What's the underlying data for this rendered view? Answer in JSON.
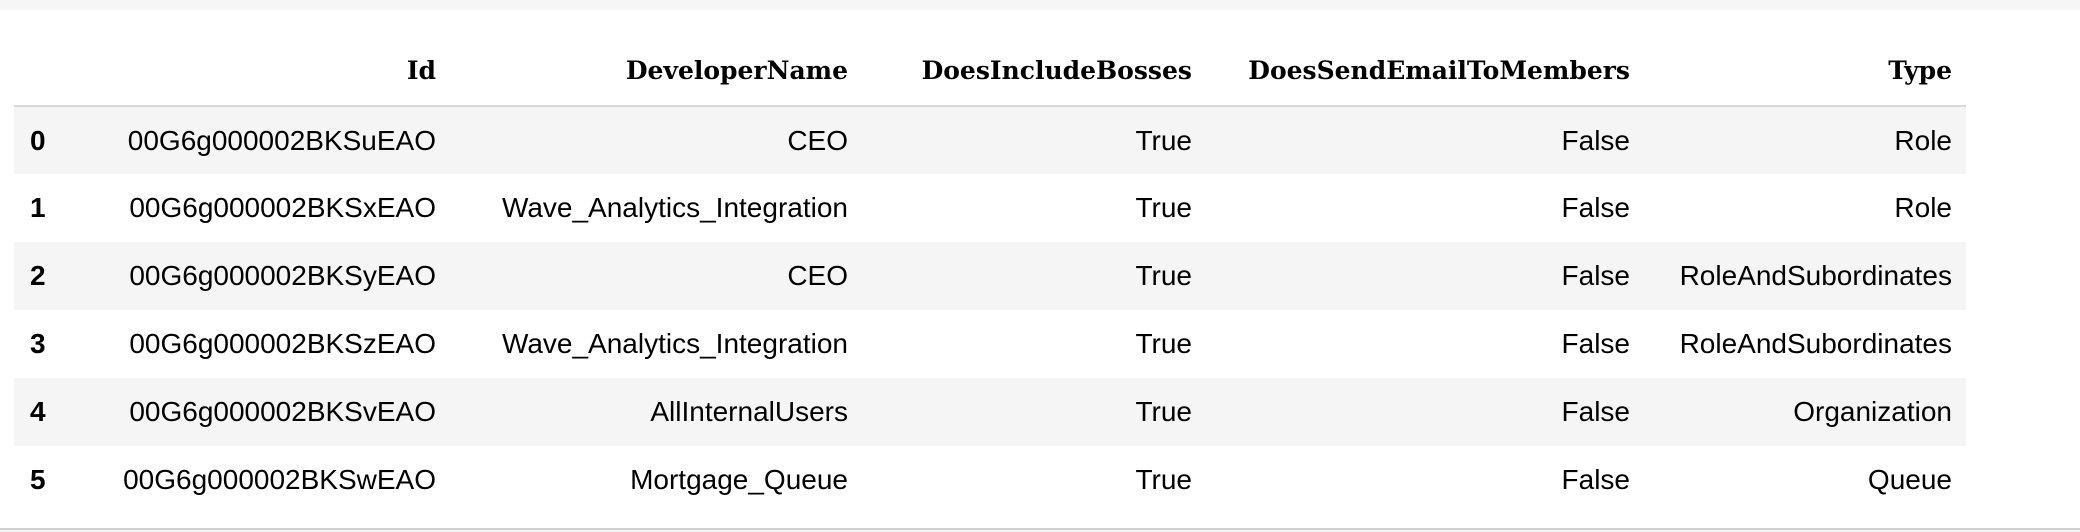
{
  "table": {
    "columns": [
      "",
      "Id",
      "DeveloperName",
      "DoesIncludeBosses",
      "DoesSendEmailToMembers",
      "Type"
    ],
    "rows": [
      {
        "index": "0",
        "cells": [
          "00G6g000002BKSuEAO",
          "CEO",
          "True",
          "False",
          "Role"
        ]
      },
      {
        "index": "1",
        "cells": [
          "00G6g000002BKSxEAO",
          "Wave_Analytics_Integration",
          "True",
          "False",
          "Role"
        ]
      },
      {
        "index": "2",
        "cells": [
          "00G6g000002BKSyEAO",
          "CEO",
          "True",
          "False",
          "RoleAndSubordinates"
        ]
      },
      {
        "index": "3",
        "cells": [
          "00G6g000002BKSzEAO",
          "Wave_Analytics_Integration",
          "True",
          "False",
          "RoleAndSubordinates"
        ]
      },
      {
        "index": "4",
        "cells": [
          "00G6g000002BKSvEAO",
          "AllInternalUsers",
          "True",
          "False",
          "Organization"
        ]
      },
      {
        "index": "5",
        "cells": [
          "00G6g000002BKSwEAO",
          "Mortgage_Queue",
          "True",
          "False",
          "Queue"
        ]
      }
    ]
  }
}
